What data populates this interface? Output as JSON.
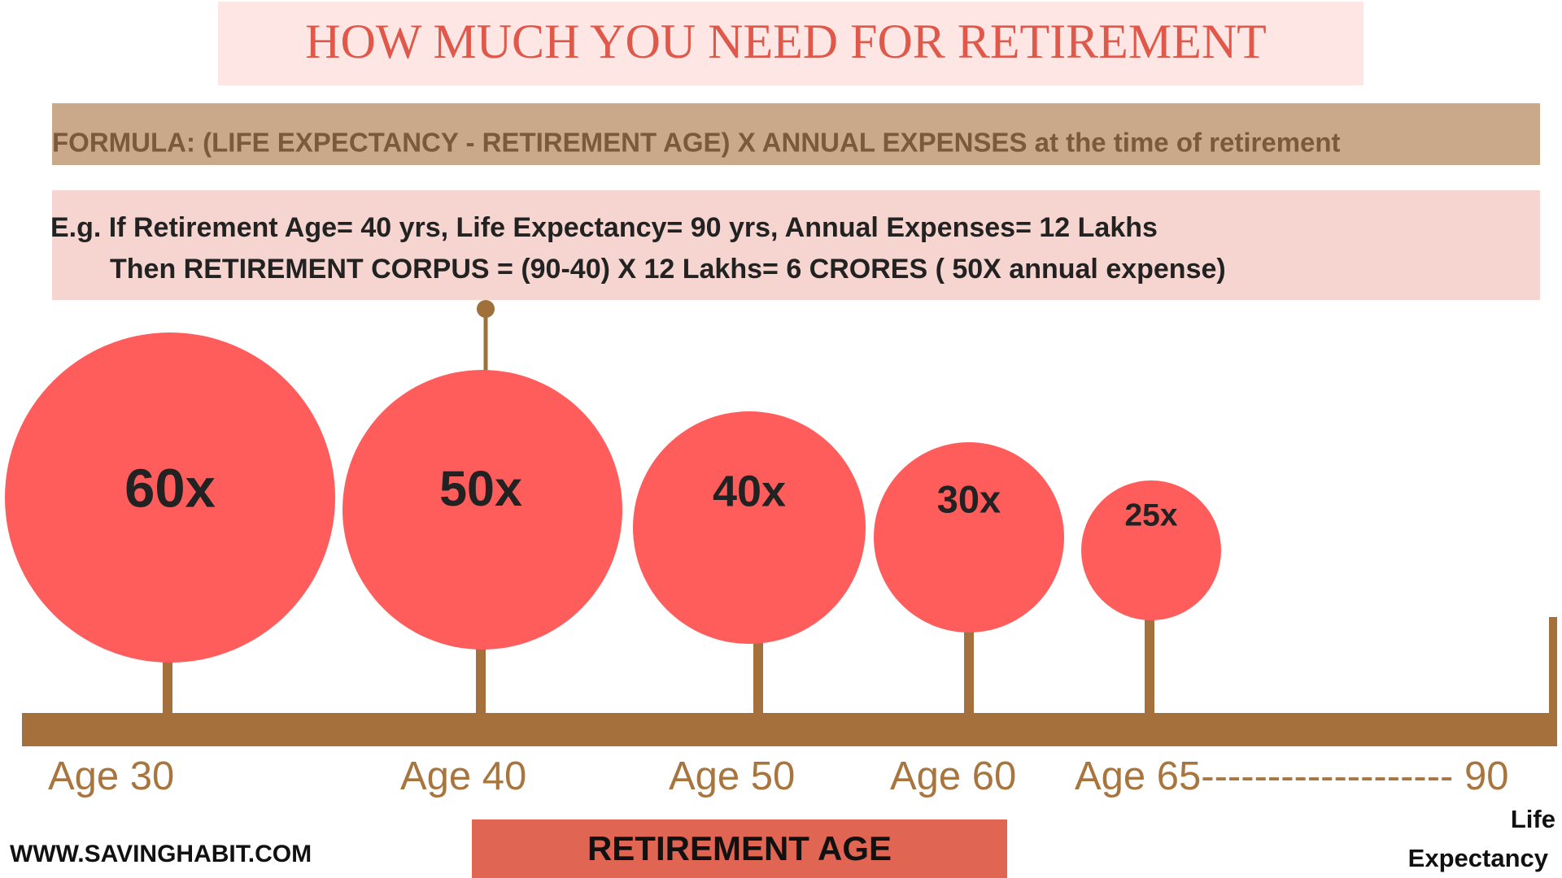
{
  "title": "HOW MUCH YOU NEED FOR RETIREMENT",
  "formula": "FORMULA: (LIFE EXPECTANCY - RETIREMENT AGE) X ANNUAL EXPENSES at the time of retirement",
  "example": [
    "E.g. If Retirement Age= 40 yrs, Life Expectancy= 90 yrs, Annual Expenses= 12 Lakhs",
    "Then RETIREMENT CORPUS =  (90-40) X 12 Lakhs= 6 CRORES ( 50X annual expense)"
  ],
  "circles": [
    {
      "label": "60x"
    },
    {
      "label": "50x"
    },
    {
      "label": "40x"
    },
    {
      "label": "30x"
    },
    {
      "label": "25x"
    }
  ],
  "ages": [
    "Age 30",
    "Age 40",
    "Age 50",
    "Age 60",
    "Age 65------------------- 90"
  ],
  "retirement_label": "RETIREMENT AGE",
  "website": "WWW.SAVINGHABIT.COM",
  "life_expectancy": [
    "Life",
    "Expectancy"
  ]
}
